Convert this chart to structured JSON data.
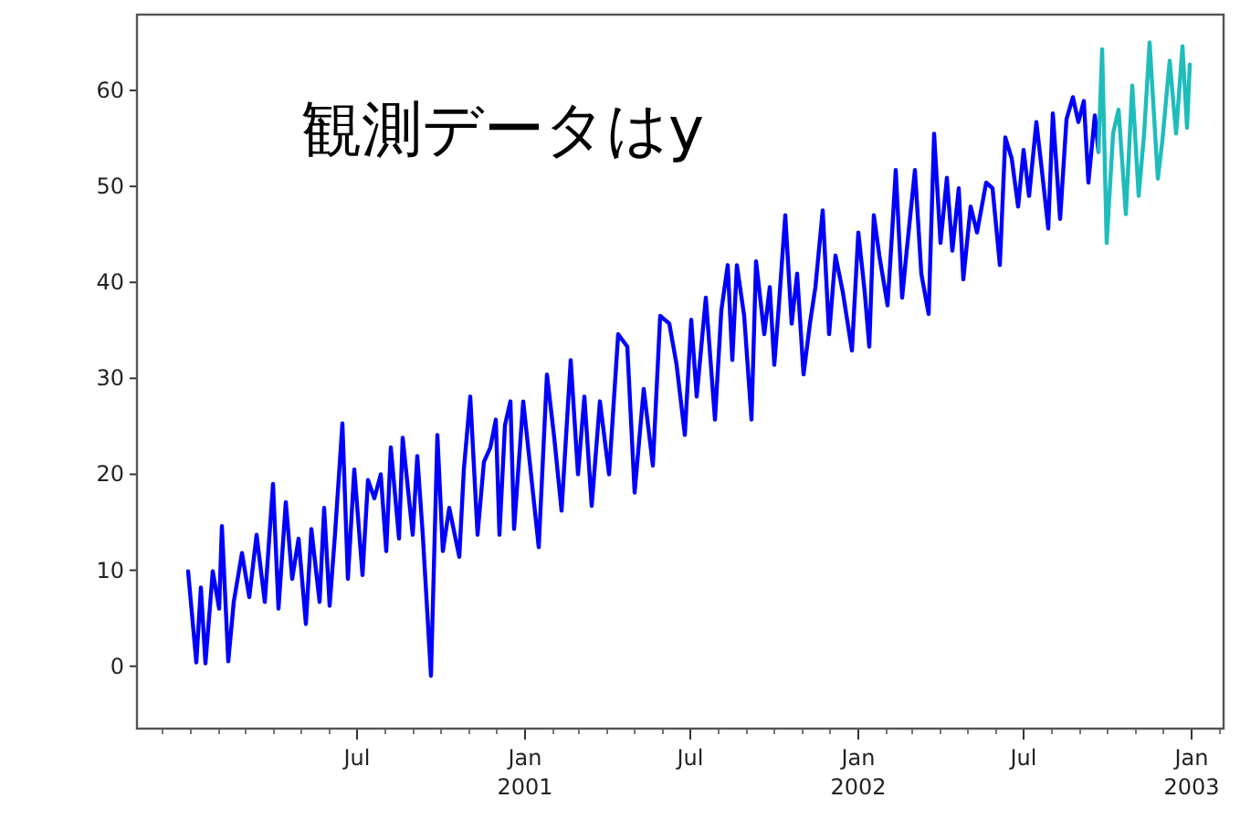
{
  "chart_data": {
    "type": "line",
    "annotations": [
      "観測データはy"
    ],
    "xlim": [
      "1999-11-03",
      "2003-02-05"
    ],
    "xticks": [
      {
        "value": "2000-07-01",
        "label": "Jul"
      },
      {
        "value": "2001-01-01",
        "label": "Jan\n2001"
      },
      {
        "value": "2001-07-01",
        "label": "Jul"
      },
      {
        "value": "2002-01-01",
        "label": "Jan\n2002"
      },
      {
        "value": "2002-07-01",
        "label": "Jul"
      },
      {
        "value": "2003-01-01",
        "label": "Jan\n2003"
      }
    ],
    "ylim": [
      -6.5,
      67.9
    ],
    "yticks": [
      0,
      10,
      20,
      30,
      40,
      50,
      60
    ],
    "grid": false,
    "series": [
      {
        "color": "#0000ff",
        "x": [
          "1999-12-29",
          "2000-01-07",
          "2000-01-12",
          "2000-01-17",
          "2000-01-25",
          "2000-02-01",
          "2000-02-04",
          "2000-02-11",
          "2000-02-17",
          "2000-02-26",
          "2000-03-05",
          "2000-03-13",
          "2000-03-22",
          "2000-03-31",
          "2000-04-06",
          "2000-04-14",
          "2000-04-21",
          "2000-04-28",
          "2000-05-06",
          "2000-05-12",
          "2000-05-21",
          "2000-05-26",
          "2000-06-01",
          "2000-06-07",
          "2000-06-15",
          "2000-06-21",
          "2000-06-28",
          "2000-07-07",
          "2000-07-13",
          "2000-07-20",
          "2000-07-27",
          "2000-08-02",
          "2000-08-07",
          "2000-08-16",
          "2000-08-20",
          "2000-08-31",
          "2000-09-05",
          "2000-09-11",
          "2000-09-20",
          "2000-09-27",
          "2000-10-03",
          "2000-10-10",
          "2000-10-21",
          "2000-10-26",
          "2000-11-02",
          "2000-11-10",
          "2000-11-17",
          "2000-11-24",
          "2000-11-30",
          "2000-12-04",
          "2000-12-10",
          "2000-12-16",
          "2000-12-20",
          "2000-12-30",
          "2001-01-07",
          "2001-01-16",
          "2001-01-25",
          "2001-02-02",
          "2001-02-10",
          "2001-02-20",
          "2001-02-28",
          "2001-03-07",
          "2001-03-15",
          "2001-03-24",
          "2001-04-03",
          "2001-04-13",
          "2001-04-23",
          "2001-05-01",
          "2001-05-11",
          "2001-05-21",
          "2001-05-29",
          "2001-06-08",
          "2001-06-16",
          "2001-06-25",
          "2001-07-02",
          "2001-07-08",
          "2001-07-18",
          "2001-07-28",
          "2001-08-04",
          "2001-08-11",
          "2001-08-16",
          "2001-08-21",
          "2001-08-29",
          "2001-09-06",
          "2001-09-11",
          "2001-09-20",
          "2001-09-26",
          "2001-10-01",
          "2001-10-06",
          "2001-10-13",
          "2001-10-20",
          "2001-10-26",
          "2001-11-02",
          "2001-11-09",
          "2001-11-15",
          "2001-11-23",
          "2001-11-30",
          "2001-12-07",
          "2001-12-15",
          "2001-12-25",
          "2002-01-01",
          "2002-01-08",
          "2002-01-13",
          "2002-01-18",
          "2002-01-24",
          "2002-02-02",
          "2002-02-07",
          "2002-02-11",
          "2002-02-18",
          "2002-02-23",
          "2002-03-04",
          "2002-03-11",
          "2002-03-19",
          "2002-03-25",
          "2002-04-01",
          "2002-04-08",
          "2002-04-14",
          "2002-04-21",
          "2002-04-26",
          "2002-05-04",
          "2002-05-11",
          "2002-05-21",
          "2002-05-28",
          "2002-06-05",
          "2002-06-11",
          "2002-06-18",
          "2002-06-25",
          "2002-07-01",
          "2002-07-07",
          "2002-07-15",
          "2002-07-21",
          "2002-07-28",
          "2002-08-02",
          "2002-08-10",
          "2002-08-17",
          "2002-08-24",
          "2002-08-30",
          "2002-09-05",
          "2002-09-10",
          "2002-09-17",
          "2002-09-21"
        ],
        "values": [
          9.9,
          0.4,
          8.2,
          0.3,
          9.9,
          6,
          14.6,
          0.5,
          6.7,
          11.8,
          7.2,
          13.7,
          6.7,
          19,
          6,
          17.1,
          9.1,
          13.3,
          4.4,
          14.3,
          6.7,
          16.5,
          6.3,
          13.9,
          25.3,
          9.1,
          20.5,
          9.5,
          19.4,
          17.5,
          20,
          12,
          22.8,
          13.3,
          23.8,
          13.7,
          21.9,
          13.7,
          -1,
          24.1,
          12,
          16.5,
          11.4,
          20.5,
          28.1,
          13.7,
          21.3,
          22.8,
          25.7,
          13.7,
          25.1,
          27.6,
          14.3,
          27.6,
          20.5,
          12.4,
          30.4,
          23.8,
          16.2,
          31.9,
          20,
          28.1,
          16.7,
          27.6,
          20,
          34.6,
          33.3,
          18.1,
          28.9,
          20.9,
          36.5,
          35.7,
          31.4,
          24.1,
          36.1,
          28.1,
          38.4,
          25.7,
          37.1,
          41.8,
          31.9,
          41.8,
          36.5,
          25.7,
          42.2,
          34.6,
          39.5,
          31.4,
          37.6,
          47,
          35.7,
          40.9,
          30.4,
          35.7,
          39.5,
          47.5,
          34.6,
          42.8,
          39,
          32.9,
          45.2,
          39,
          33.3,
          47,
          42.8,
          37.6,
          45.2,
          51.7,
          38.4,
          43.3,
          51.7,
          40.9,
          36.7,
          55.5,
          44.1,
          50.9,
          43.3,
          49.8,
          40.3,
          47.9,
          45.2,
          50.4,
          49.8,
          41.8,
          55.1,
          52.9,
          47.9,
          53.8,
          49,
          56.7,
          51.7,
          45.6,
          57.6,
          46.6,
          57,
          59.3,
          56.7,
          58.9,
          50.4,
          57.4,
          53.6
        ]
      },
      {
        "color": "#1fbcbc",
        "x": [
          "2002-09-21",
          "2002-09-25",
          "2002-09-30",
          "2002-10-07",
          "2002-10-13",
          "2002-10-21",
          "2002-10-28",
          "2002-11-04",
          "2002-11-10",
          "2002-11-16",
          "2002-11-25",
          "2002-11-30",
          "2002-12-08",
          "2002-12-15",
          "2002-12-22",
          "2002-12-27",
          "2002-12-30"
        ],
        "values": [
          53.6,
          64.3,
          44.1,
          55.5,
          58,
          47.1,
          60.5,
          49,
          55.5,
          65,
          50.8,
          54.8,
          63.1,
          55.5,
          64.6,
          56.1,
          62.7
        ]
      }
    ]
  }
}
